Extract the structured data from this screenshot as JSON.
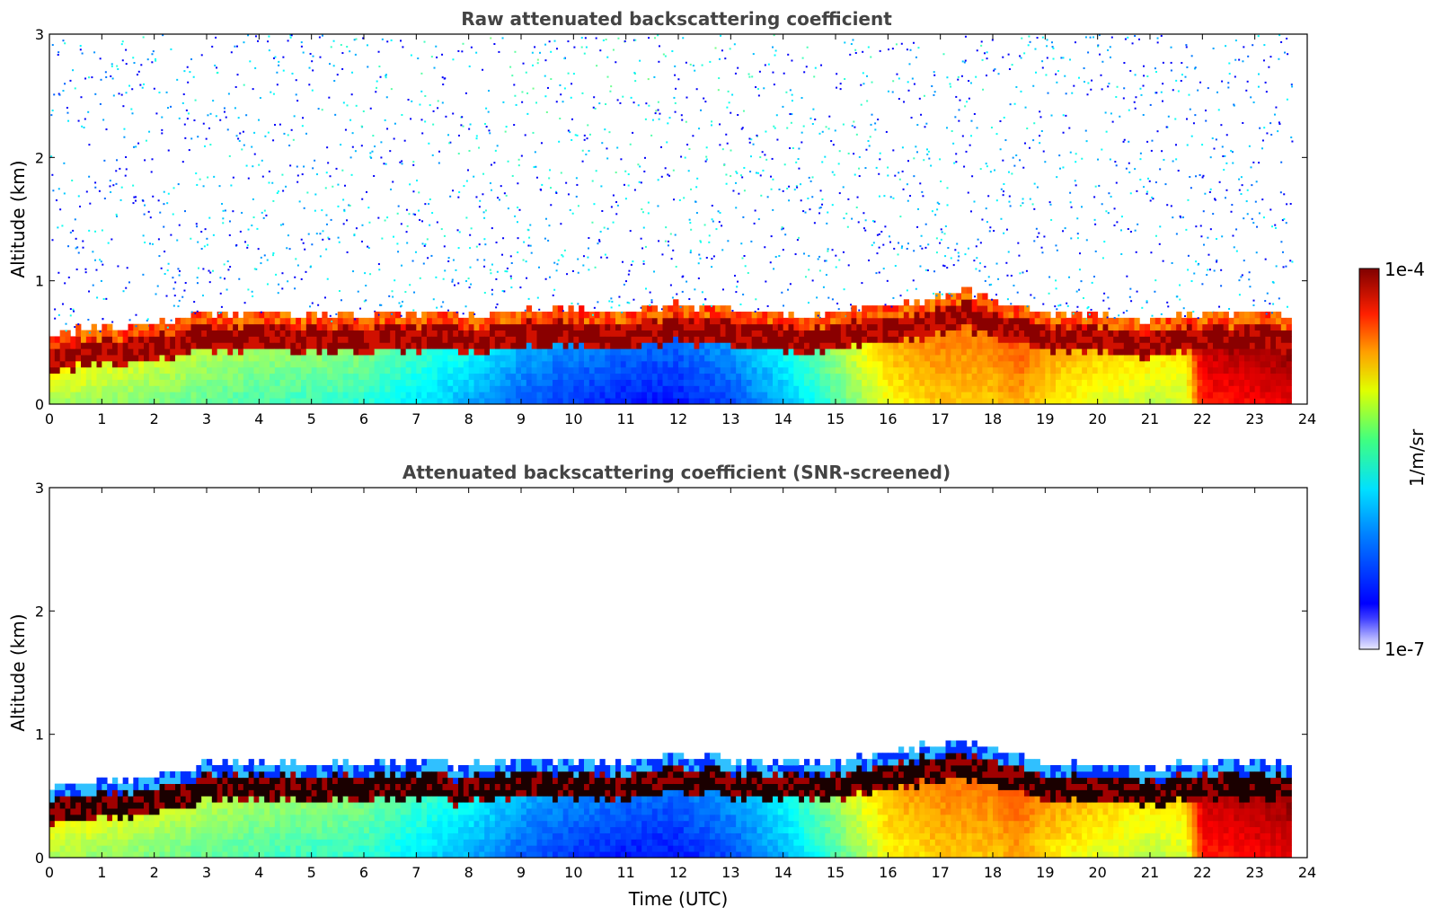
{
  "chart_data": [
    {
      "type": "heatmap",
      "title": "Raw attenuated backscattering coefficient",
      "xlabel": "",
      "ylabel": "Altitude (km)",
      "xlim": [
        0,
        24
      ],
      "ylim": [
        0,
        3
      ],
      "x_ticks": [
        "0",
        "1",
        "2",
        "3",
        "4",
        "5",
        "6",
        "7",
        "8",
        "9",
        "10",
        "11",
        "12",
        "13",
        "14",
        "15",
        "16",
        "17",
        "18",
        "19",
        "20",
        "21",
        "22",
        "23",
        "24"
      ],
      "y_ticks": [
        "0",
        "1",
        "2",
        "3"
      ],
      "time_end_utc": 23.7,
      "aerosol_layer_top_km": {
        "x": [
          0,
          1,
          2,
          3,
          4,
          5,
          6,
          7,
          8,
          9,
          10,
          11,
          12,
          13,
          14,
          15,
          16,
          17,
          17.5,
          18,
          19,
          20,
          21,
          22,
          23,
          23.7
        ],
        "values": [
          0.55,
          0.6,
          0.62,
          0.72,
          0.72,
          0.7,
          0.7,
          0.72,
          0.7,
          0.75,
          0.75,
          0.72,
          0.78,
          0.75,
          0.7,
          0.72,
          0.78,
          0.85,
          0.9,
          0.82,
          0.72,
          0.68,
          0.66,
          0.7,
          0.72,
          0.7
        ]
      },
      "near_surface_level": {
        "x": [
          0,
          2,
          4,
          6,
          8,
          9,
          10,
          11,
          12,
          13,
          14,
          15,
          16,
          17,
          18,
          18.5,
          19,
          20,
          21,
          21.7,
          22,
          23,
          23.7
        ],
        "values": [
          0.55,
          0.5,
          0.45,
          0.42,
          0.3,
          0.22,
          0.18,
          0.15,
          0.15,
          0.2,
          0.3,
          0.45,
          0.62,
          0.68,
          0.68,
          0.72,
          0.65,
          0.6,
          0.56,
          0.58,
          0.85,
          0.88,
          0.9
        ]
      },
      "noise_above_layer": true
    },
    {
      "type": "heatmap",
      "title": "Attenuated backscattering coefficient (SNR-screened)",
      "xlabel": "Time (UTC)",
      "ylabel": "Altitude (km)",
      "xlim": [
        0,
        24
      ],
      "ylim": [
        0,
        3
      ],
      "x_ticks": [
        "0",
        "1",
        "2",
        "3",
        "4",
        "5",
        "6",
        "7",
        "8",
        "9",
        "10",
        "11",
        "12",
        "13",
        "14",
        "15",
        "16",
        "17",
        "18",
        "19",
        "20",
        "21",
        "22",
        "23",
        "24"
      ],
      "y_ticks": [
        "0",
        "1",
        "2",
        "3"
      ],
      "time_end_utc": 23.7,
      "aerosol_layer_top_km": {
        "x": [
          0,
          1,
          2,
          3,
          4,
          5,
          6,
          7,
          8,
          9,
          10,
          11,
          12,
          13,
          14,
          15,
          16,
          17,
          17.5,
          18,
          19,
          20,
          21,
          22,
          23,
          23.7
        ],
        "values": [
          0.55,
          0.6,
          0.62,
          0.75,
          0.75,
          0.72,
          0.74,
          0.75,
          0.72,
          0.78,
          0.76,
          0.75,
          0.8,
          0.78,
          0.74,
          0.76,
          0.82,
          0.9,
          0.92,
          0.85,
          0.75,
          0.72,
          0.7,
          0.75,
          0.76,
          0.72
        ]
      },
      "near_surface_level": {
        "x": [
          0,
          2,
          4,
          6,
          8,
          9,
          10,
          11,
          12,
          13,
          14,
          15,
          16,
          17,
          18,
          18.5,
          19,
          20,
          21,
          21.7,
          22,
          23,
          23.7
        ],
        "values": [
          0.55,
          0.5,
          0.45,
          0.42,
          0.3,
          0.22,
          0.18,
          0.15,
          0.15,
          0.2,
          0.3,
          0.45,
          0.62,
          0.68,
          0.68,
          0.72,
          0.65,
          0.6,
          0.56,
          0.58,
          0.85,
          0.88,
          0.9
        ]
      },
      "noise_above_layer": false
    }
  ],
  "colorbar": {
    "label": "1/m/sr",
    "max_label": "1e-4",
    "min_label": "1e-7",
    "scale": "log",
    "colormap": "jet",
    "range": [
      1e-07,
      0.0001
    ]
  }
}
